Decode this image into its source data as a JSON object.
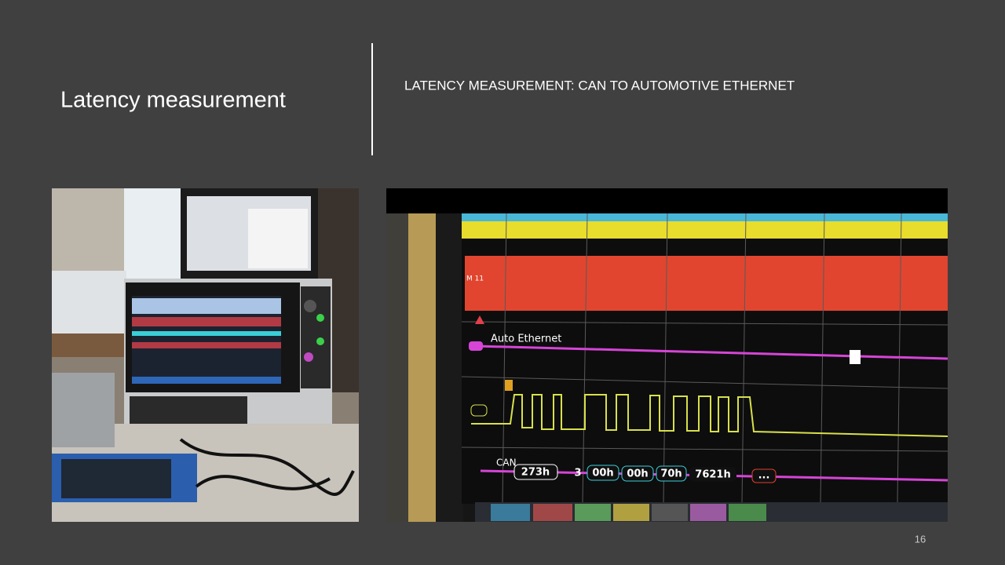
{
  "slide": {
    "title": "Latency measurement",
    "heading": "LATENCY MEASUREMENT: CAN TO AUTOMOTIVE ETHERNET",
    "page_number": "16"
  },
  "scope": {
    "math_label": "M 11",
    "ethernet_label": "Auto Ethernet",
    "can_label": "CAN",
    "can_frame": [
      "273h",
      "3",
      "00h",
      "00h",
      "70h",
      "7621h",
      "..."
    ]
  }
}
